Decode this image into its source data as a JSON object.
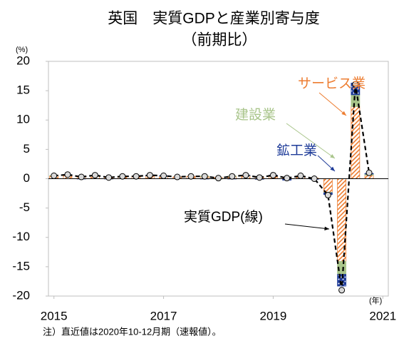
{
  "chart_data": {
    "type": "bar",
    "title": "英国　実質GDPと産業別寄与度",
    "subtitle": "（前期比）",
    "y_unit": "(%)",
    "x_unit": "(年)",
    "note": "注）直近値は2020年10-12月期（速報値）。",
    "x": [
      2015,
      2015.25,
      2015.5,
      2015.75,
      2016,
      2016.25,
      2016.5,
      2016.75,
      2017,
      2017.25,
      2017.5,
      2017.75,
      2018,
      2018.25,
      2018.5,
      2018.75,
      2019,
      2019.25,
      2019.5,
      2019.75,
      2020,
      2020.25,
      2020.5,
      2020.75
    ],
    "xlim": [
      2014.9,
      2021.1
    ],
    "xticks": [
      2015,
      2017,
      2019,
      2021
    ],
    "ylim": [
      -20,
      20
    ],
    "yticks": [
      -20,
      -15,
      -10,
      -5,
      0,
      5,
      10,
      15,
      20
    ],
    "series": [
      {
        "name": "サービス業",
        "type": "bar",
        "color": "#ed7d31",
        "values": [
          0.5,
          0.6,
          0.3,
          0.5,
          0.3,
          0.4,
          0.4,
          0.5,
          0.4,
          0.3,
          0.4,
          0.4,
          0.2,
          0.4,
          0.5,
          0.3,
          0.4,
          0.1,
          0.4,
          0.1,
          -2.3,
          -14.1,
          12.3,
          0.6
        ]
      },
      {
        "name": "建設業",
        "type": "bar",
        "color": "#a9c58b",
        "values": [
          0.05,
          0.05,
          0,
          0.05,
          0,
          0.05,
          0,
          0.05,
          0.05,
          0,
          0,
          0.05,
          -0.05,
          0.05,
          0.05,
          0,
          0.1,
          -0.05,
          0.05,
          0,
          -0.1,
          -2.2,
          2.0,
          0.2
        ]
      },
      {
        "name": "鉱工業",
        "type": "bar",
        "color": "#1f3c99",
        "values": [
          0,
          0.05,
          -0.05,
          0,
          -0.05,
          0,
          0,
          0.05,
          0.05,
          0,
          0,
          -0.05,
          0,
          -0.05,
          0.05,
          -0.1,
          0.1,
          -0.2,
          0,
          -0.1,
          -0.3,
          -2.0,
          2.0,
          0.1
        ]
      },
      {
        "name": "実質GDP(線)",
        "type": "line",
        "color": "#000000",
        "values": [
          0.5,
          0.7,
          0.3,
          0.6,
          0.2,
          0.4,
          0.4,
          0.6,
          0.5,
          0.3,
          0.4,
          0.4,
          0.1,
          0.4,
          0.6,
          0.2,
          0.6,
          0.1,
          0.5,
          0.0,
          -2.8,
          -19.0,
          16.1,
          1.0
        ]
      }
    ]
  }
}
